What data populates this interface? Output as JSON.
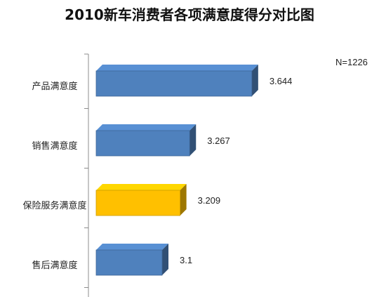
{
  "chart_data": {
    "type": "bar",
    "orientation": "horizontal",
    "title": "2010新车消费者各项满意度得分对比图",
    "annotation": "N=1226",
    "categories": [
      "产品满意度",
      "销售满意度",
      "保险服务满意度",
      "售后满意度"
    ],
    "values": [
      3.644,
      3.267,
      3.209,
      3.1
    ],
    "value_labels": [
      "3.644",
      "3.267",
      "3.209",
      "3.1"
    ],
    "bar_colors": [
      "#4f81bd",
      "#4f81bd",
      "#ffc000",
      "#4f81bd"
    ],
    "xlim": [
      2.7,
      3.75
    ],
    "grid": false,
    "legend": "none"
  }
}
